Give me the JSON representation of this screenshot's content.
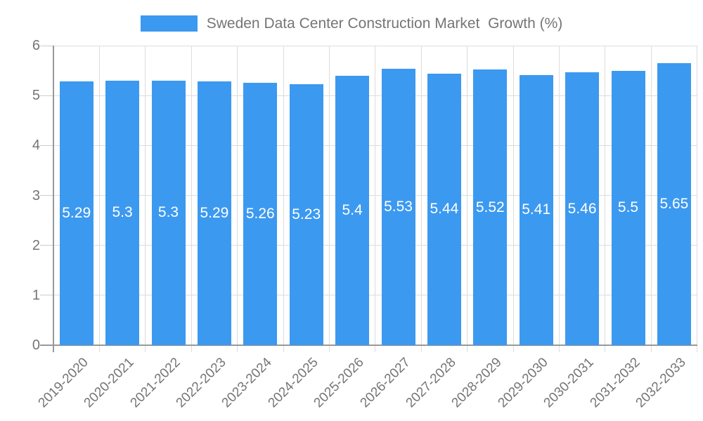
{
  "chart_data": {
    "type": "bar",
    "title": "Sweden Data Center Construction Market  Growth (%)",
    "categories": [
      "2019-2020",
      "2020-2021",
      "2021-2022",
      "2022-2023",
      "2023-2024",
      "2024-2025",
      "2025-2026",
      "2026-2027",
      "2027-2028",
      "2028-2029",
      "2029-2030",
      "2030-2031",
      "2031-2032",
      "2032-2033"
    ],
    "values": [
      5.29,
      5.3,
      5.3,
      5.29,
      5.26,
      5.23,
      5.4,
      5.53,
      5.44,
      5.52,
      5.41,
      5.46,
      5.5,
      5.65
    ],
    "xlabel": "",
    "ylabel": "",
    "ylim": [
      0,
      6
    ],
    "yticks": [
      0,
      1,
      2,
      3,
      4,
      5,
      6
    ],
    "grid": true,
    "legend_position": "top",
    "bar_color": "#3c99f0",
    "value_label_color": "#ffffff",
    "axis_text_color": "#757575",
    "axis_line_color": "#999999",
    "gridline_color": "#dcdcdc"
  }
}
